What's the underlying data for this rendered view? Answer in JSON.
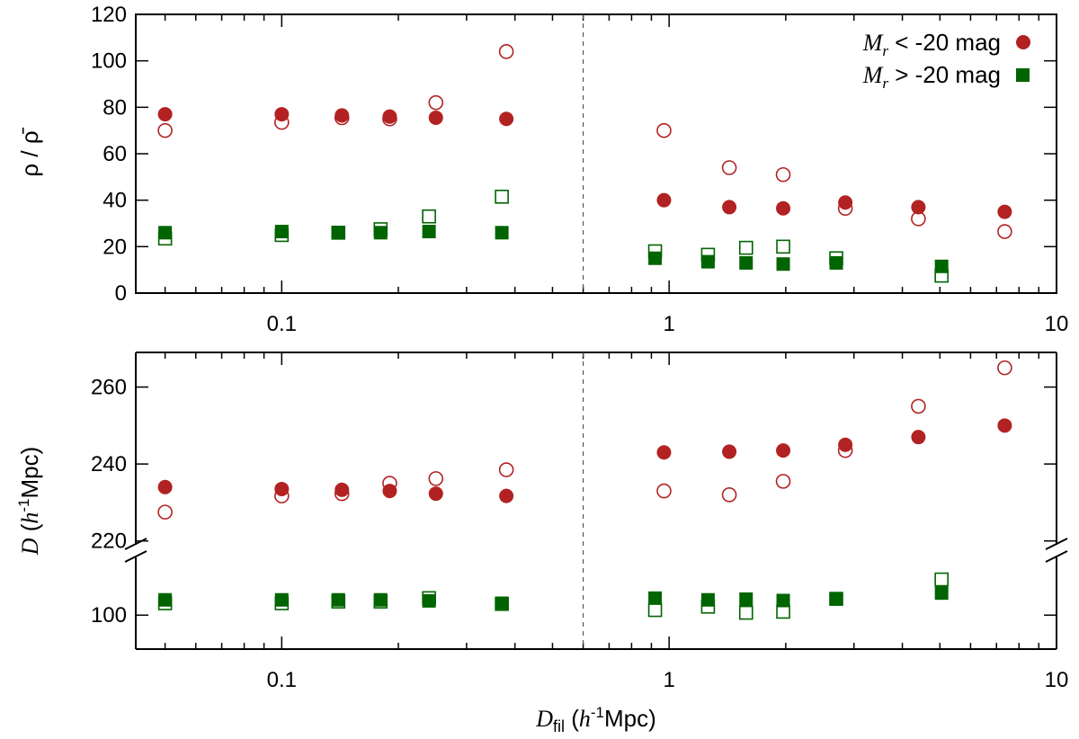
{
  "chart_data": [
    {
      "type": "scatter",
      "panel": "top",
      "xscale": "log",
      "xlim": [
        0.042,
        10
      ],
      "ylim": [
        0,
        120
      ],
      "yticks": [
        0,
        20,
        40,
        60,
        80,
        100,
        120
      ],
      "xticks": [
        {
          "value": 0.1,
          "label": "0.1"
        },
        {
          "value": 1,
          "label": "1"
        },
        {
          "value": 10,
          "label": "10"
        }
      ],
      "ylabel": "ρ / ρ̄",
      "vline_x": 0.6,
      "series": [
        {
          "name": "bright_closed",
          "group": "bright",
          "marker": "circle",
          "filled": true,
          "x": [
            0.05,
            0.1,
            0.143,
            0.19,
            0.25,
            0.38,
            0.97,
            1.43,
            1.97,
            2.85,
            4.4,
            7.35
          ],
          "y": [
            77,
            77,
            76.5,
            76,
            75.5,
            75,
            40,
            37,
            36.5,
            39,
            37,
            35
          ]
        },
        {
          "name": "bright_open",
          "group": "bright",
          "marker": "circle",
          "filled": false,
          "x": [
            0.05,
            0.1,
            0.143,
            0.19,
            0.25,
            0.38,
            0.97,
            1.43,
            1.97,
            2.85,
            4.4,
            7.35
          ],
          "y": [
            70,
            73.5,
            75.5,
            75,
            82,
            104,
            70,
            54,
            51,
            36.5,
            32,
            26.5
          ]
        },
        {
          "name": "faint_closed",
          "group": "faint",
          "marker": "square",
          "filled": true,
          "x": [
            0.05,
            0.1,
            0.14,
            0.18,
            0.24,
            0.37,
            0.92,
            1.26,
            1.58,
            1.97,
            2.7,
            5.05
          ],
          "y": [
            26,
            26.5,
            26,
            26,
            26.5,
            26,
            15,
            13.5,
            13,
            12.5,
            13,
            11.5
          ]
        },
        {
          "name": "faint_open",
          "group": "faint",
          "marker": "square",
          "filled": false,
          "x": [
            0.05,
            0.1,
            0.14,
            0.18,
            0.24,
            0.37,
            0.92,
            1.26,
            1.58,
            1.97,
            2.7,
            5.05
          ],
          "y": [
            23.5,
            25,
            26,
            27.5,
            33,
            41.5,
            18,
            16.5,
            19.5,
            20,
            15,
            7.5
          ]
        }
      ]
    },
    {
      "type": "scatter",
      "panel": "bottom",
      "xscale": "log",
      "xlim": [
        0.042,
        10
      ],
      "broken_y": true,
      "upper_ylim": [
        219,
        269
      ],
      "lower_ylim": [
        90,
        117
      ],
      "yticks": [
        {
          "value": 100,
          "label": "100"
        },
        {
          "value": 220,
          "label": "220"
        },
        {
          "value": 240,
          "label": "240"
        },
        {
          "value": 260,
          "label": "260"
        }
      ],
      "xticks": [
        {
          "value": 0.1,
          "label": "0.1"
        },
        {
          "value": 1,
          "label": "1"
        },
        {
          "value": 10,
          "label": "10"
        }
      ],
      "xlabel": "D_fil (h^-1 Mpc)",
      "ylabel": "D (h^-1 Mpc)",
      "vline_x": 0.6,
      "series": [
        {
          "name": "bright_closed",
          "group": "bright",
          "marker": "circle",
          "filled": true,
          "x": [
            0.05,
            0.1,
            0.143,
            0.19,
            0.25,
            0.38,
            0.97,
            1.43,
            1.97,
            2.85,
            4.4,
            7.35
          ],
          "y": [
            234,
            233.5,
            233.3,
            233,
            232.3,
            231.7,
            243,
            243.2,
            243.5,
            245,
            247,
            250
          ]
        },
        {
          "name": "bright_open",
          "group": "bright",
          "marker": "circle",
          "filled": false,
          "x": [
            0.05,
            0.1,
            0.143,
            0.19,
            0.25,
            0.38,
            0.97,
            1.43,
            1.97,
            2.85,
            4.4,
            7.35
          ],
          "y": [
            227.5,
            231.7,
            232.3,
            235,
            236.2,
            238.5,
            233,
            232,
            235.5,
            243.5,
            255,
            265
          ]
        },
        {
          "name": "faint_closed",
          "group": "faint",
          "marker": "square",
          "filled": true,
          "x": [
            0.05,
            0.1,
            0.14,
            0.18,
            0.24,
            0.37,
            0.92,
            1.26,
            1.58,
            1.97,
            2.7,
            5.05
          ],
          "y": [
            104.5,
            104.5,
            104.5,
            104.5,
            104.2,
            103.5,
            105,
            104.5,
            104.7,
            104.3,
            104.8,
            106.5
          ]
        },
        {
          "name": "faint_open",
          "group": "faint",
          "marker": "square",
          "filled": false,
          "x": [
            0.05,
            0.1,
            0.14,
            0.18,
            0.24,
            0.37,
            0.92,
            1.26,
            1.58,
            1.97,
            2.7,
            5.05
          ],
          "y": [
            103.5,
            103.5,
            104,
            104,
            105,
            103.3,
            101.5,
            102.5,
            100.7,
            101,
            104.8,
            110.5
          ]
        }
      ]
    }
  ],
  "legend": {
    "position": "top-right",
    "entries": [
      {
        "symbol": "M",
        "subscript": "r",
        "text": " < -20 mag",
        "marker": "circle",
        "group": "bright"
      },
      {
        "symbol": "M",
        "subscript": "r",
        "text": " > -20 mag",
        "marker": "square",
        "group": "faint"
      }
    ]
  },
  "labels": {
    "top_ylabel": "ρ / ρ̄",
    "bottom_ylabel_symbol": "D",
    "bottom_ylabel_paren_open": " (",
    "bottom_ylabel_h": "h",
    "bottom_ylabel_exp": "-1",
    "bottom_ylabel_unit": "Mpc)",
    "xlabel_symbol": "D",
    "xlabel_sub": "fil",
    "xlabel_paren_open": " (",
    "xlabel_h": "h",
    "xlabel_exp": "-1",
    "xlabel_unit": "Mpc)"
  },
  "colors": {
    "bright": "#b22222",
    "faint": "#006400",
    "axis": "#000000",
    "vline": "#555555"
  }
}
